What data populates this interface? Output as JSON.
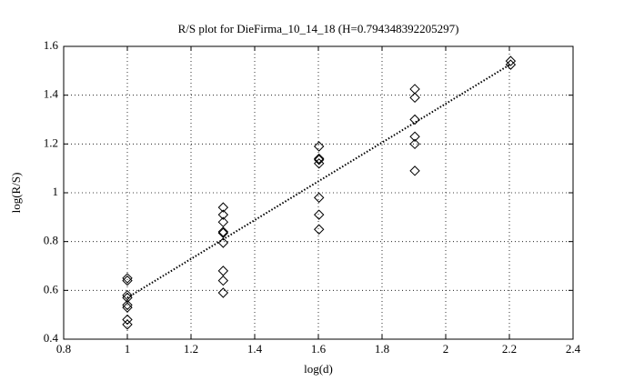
{
  "chart_data": {
    "type": "scatter",
    "title": "R/S plot for DieFirma_10_14_18 (H=0.794348392205297)",
    "xlabel": "log(d)",
    "ylabel": "log(R/S)",
    "xlim": [
      0.8,
      2.4
    ],
    "xticks": [
      0.8,
      1,
      1.2,
      1.4,
      1.6,
      1.8,
      2,
      2.2,
      2.4
    ],
    "ylim": [
      0.4,
      1.6
    ],
    "yticks": [
      0.4,
      0.6,
      0.8,
      1,
      1.2,
      1.4,
      1.6
    ],
    "grid": true,
    "series": [
      {
        "marker": "diamond",
        "color": "#000000",
        "x": [
          1,
          1,
          1,
          1,
          1,
          1,
          1,
          1,
          1.301,
          1.301,
          1.301,
          1.301,
          1.301,
          1.301,
          1.301,
          1.301,
          1.301,
          1.602,
          1.602,
          1.602,
          1.602,
          1.602,
          1.602,
          1.602,
          1.903,
          1.903,
          1.903,
          1.903,
          1.903,
          1.903,
          2.204,
          2.204
        ],
        "values": [
          0.65,
          0.64,
          0.58,
          0.57,
          0.54,
          0.53,
          0.48,
          0.46,
          0.94,
          0.91,
          0.88,
          0.84,
          0.835,
          0.795,
          0.68,
          0.64,
          0.59,
          1.19,
          1.14,
          1.135,
          1.12,
          0.98,
          0.91,
          0.85,
          1.425,
          1.39,
          1.3,
          1.23,
          1.2,
          1.09,
          1.54,
          1.525
        ]
      },
      {
        "line": "dotted",
        "color": "#000000",
        "x": [
          1,
          2.204
        ],
        "values": [
          0.57,
          1.527
        ]
      }
    ]
  }
}
